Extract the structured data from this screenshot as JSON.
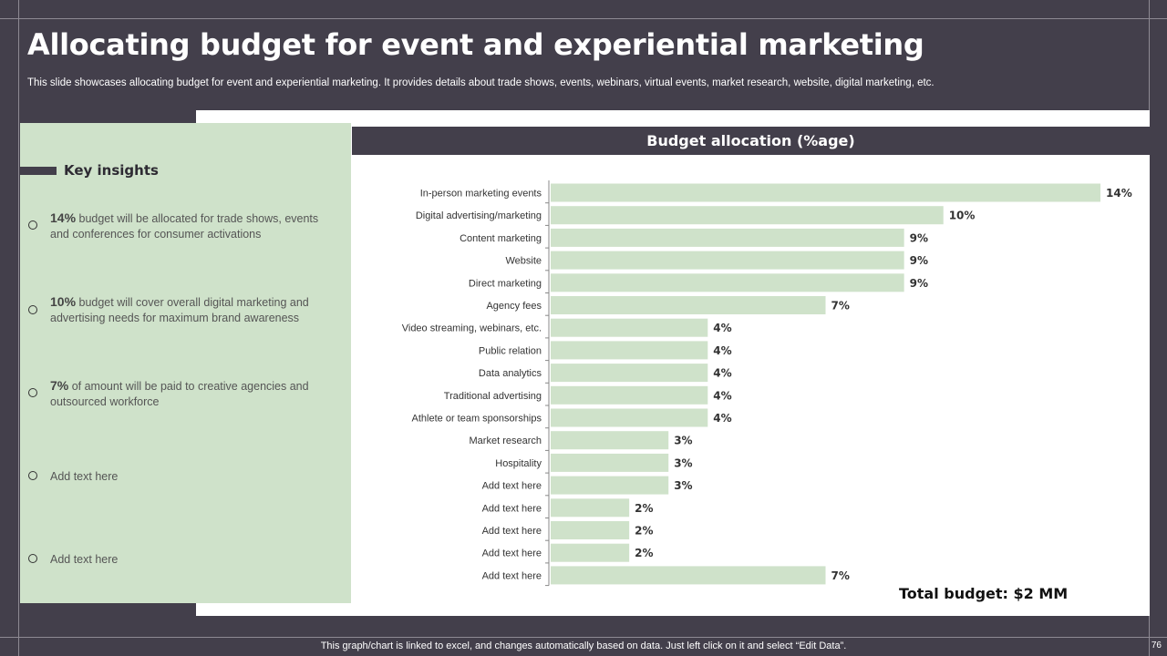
{
  "slide": {
    "title": "Allocating budget for event and experiential marketing",
    "subtitle": "This slide showcases allocating budget for event and experiential marketing. It provides details about trade shows, events, webinars, virtual events, market research, website, digital marketing, etc.",
    "footer": "This graph/chart is linked to excel, and changes automatically based on data. Just left click on it and select “Edit Data”.",
    "page_number": "76",
    "total_budget": "Total budget: $2 MM"
  },
  "insights": {
    "title": "Key insights",
    "items": [
      {
        "highlight": "14%",
        "text": " budget will be allocated for trade shows, events and conferences for consumer activations"
      },
      {
        "highlight": "10%",
        "text": " budget will cover overall digital marketing and advertising needs for maximum brand awareness"
      },
      {
        "highlight": "7%",
        "text": " of amount will be paid to creative agencies and outsourced workforce"
      },
      {
        "highlight": "",
        "text": "Add text here"
      },
      {
        "highlight": "",
        "text": "Add text here"
      }
    ]
  },
  "chart_data": {
    "type": "bar",
    "orientation": "horizontal",
    "title": "Budget allocation (%age)",
    "xlabel": "",
    "ylabel": "",
    "xlim": [
      0,
      14
    ],
    "grid": false,
    "bar_color": "#cfe2ca",
    "categories": [
      "In-person marketing events",
      "Digital advertising/marketing",
      "Content marketing",
      "Website",
      "Direct marketing",
      "Agency fees",
      "Video streaming, webinars, etc.",
      "Public relation",
      "Data analytics",
      "Traditional advertising",
      "Athlete or team sponsorships",
      "Market research",
      "Hospitality",
      "Add text here",
      "Add text here",
      "Add text here",
      "Add text here",
      "Add text here"
    ],
    "values": [
      14,
      10,
      9,
      9,
      9,
      7,
      4,
      4,
      4,
      4,
      4,
      3,
      3,
      3,
      2,
      2,
      2,
      7
    ],
    "value_labels": [
      "14%",
      "10%",
      "9%",
      "9%",
      "9%",
      "7%",
      "4%",
      "4%",
      "4%",
      "4%",
      "4%",
      "3%",
      "3%",
      "3%",
      "2%",
      "2%",
      "2%",
      "7%"
    ]
  },
  "colors": {
    "background": "#433f4b",
    "panel": "#cfe2ca",
    "bar": "#cfe2ca",
    "header": "#433f4b"
  }
}
